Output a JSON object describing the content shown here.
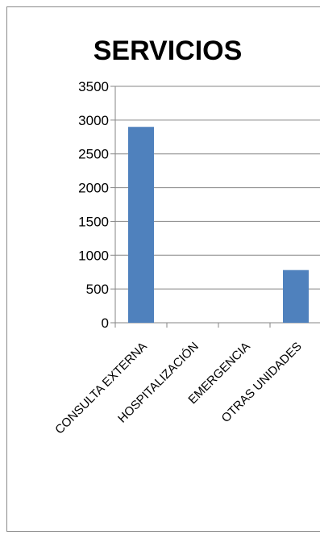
{
  "chart_data": {
    "type": "bar",
    "title": "SERVICIOS",
    "categories": [
      "CONSULTA EXTERNA",
      "HOSPITALIZACIÓN",
      "EMERGENCIA",
      "OTRAS UNIDADES"
    ],
    "values": [
      2900,
      0,
      0,
      780
    ],
    "yticks": [
      "0",
      "500",
      "1000",
      "1500",
      "2000",
      "2500",
      "3000",
      "3500"
    ],
    "ylim": [
      0,
      3500
    ],
    "grid": true,
    "legend": "none",
    "bar_color": "#4f81bd"
  }
}
